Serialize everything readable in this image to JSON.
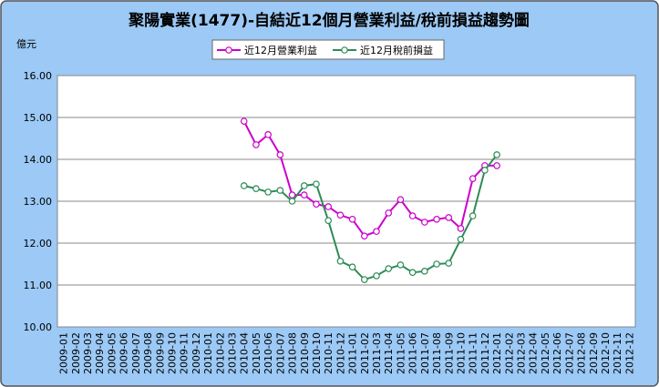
{
  "chart_data": {
    "type": "line",
    "title": "聚陽實業(1477)-自結近12個月營業利益/稅前損益趨勢圖",
    "y_axis_label": "億元",
    "categories": [
      "2009-01",
      "2009-02",
      "2009-03",
      "2009-04",
      "2009-05",
      "2009-06",
      "2009-07",
      "2009-08",
      "2009-09",
      "2009-10",
      "2009-11",
      "2009-12",
      "2010-01",
      "2010-02",
      "2010-03",
      "2010-04",
      "2010-05",
      "2010-06",
      "2010-07",
      "2010-08",
      "2010-09",
      "2010-10",
      "2010-11",
      "2010-12",
      "2011-01",
      "2011-02",
      "2011-03",
      "2011-04",
      "2011-05",
      "2011-06",
      "2011-07",
      "2011-08",
      "2011-09",
      "2011-10",
      "2011-11",
      "2011-12",
      "2012-01",
      "2012-02",
      "2012-03",
      "2012-04",
      "2012-05",
      "2012-06",
      "2012-07",
      "2012-08",
      "2012-09",
      "2012-10",
      "2012-11",
      "2012-12"
    ],
    "series": [
      {
        "name": "近12月營業利益",
        "color": "#cc00cc",
        "values": [
          null,
          null,
          null,
          null,
          null,
          null,
          null,
          null,
          null,
          null,
          null,
          null,
          null,
          null,
          null,
          14.91,
          14.35,
          14.59,
          14.11,
          13.15,
          13.15,
          12.93,
          12.87,
          12.67,
          12.57,
          12.17,
          12.28,
          12.72,
          13.04,
          12.65,
          12.5,
          12.57,
          12.61,
          12.35,
          13.54,
          13.85,
          13.85,
          null,
          null,
          null,
          null,
          null,
          null,
          null,
          null,
          null,
          null,
          null
        ]
      },
      {
        "name": "近12月稅前損益",
        "color": "#2e8b57",
        "values": [
          null,
          null,
          null,
          null,
          null,
          null,
          null,
          null,
          null,
          null,
          null,
          null,
          null,
          null,
          null,
          13.37,
          13.3,
          13.22,
          13.26,
          13.0,
          13.37,
          13.41,
          12.54,
          11.57,
          11.43,
          11.13,
          11.22,
          11.39,
          11.48,
          11.3,
          11.33,
          11.5,
          11.52,
          12.09,
          12.65,
          13.74,
          14.11,
          null,
          null,
          null,
          null,
          null,
          null,
          null,
          null,
          null,
          null,
          null
        ]
      }
    ],
    "ylim": [
      10,
      16
    ],
    "yticks": [
      {
        "value": 10,
        "label": "10.00"
      },
      {
        "value": 11,
        "label": "11.00"
      },
      {
        "value": 12,
        "label": "12.00"
      },
      {
        "value": 13,
        "label": "13.00"
      },
      {
        "value": 14,
        "label": "14.00"
      },
      {
        "value": 15,
        "label": "15.00"
      },
      {
        "value": 16,
        "label": "16.00"
      }
    ],
    "grid": true,
    "legend": "top"
  }
}
